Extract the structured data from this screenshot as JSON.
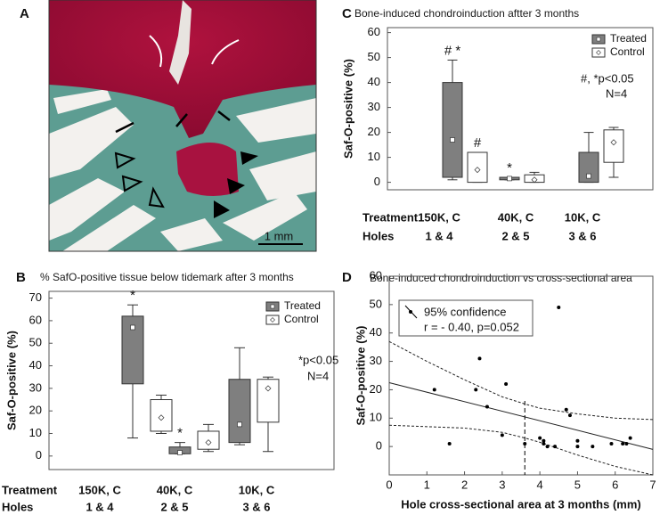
{
  "image_panel": {
    "panel_label": "A",
    "scale_bar": "1 mm"
  },
  "chart_data": [
    {
      "type": "box",
      "panel_label": "B",
      "title": "% SafO-positive tissue below tidemark after 3 months",
      "ylabel": "Saf-O-positive (%)",
      "row_labels": [
        "Treatment",
        "Holes"
      ],
      "categories": [
        "150K, C",
        "40K, C",
        "10K, C"
      ],
      "holes": [
        "1 & 4",
        "2 & 5",
        "3 & 6"
      ],
      "ylim": [
        -6,
        73
      ],
      "yticks": [
        0,
        10,
        20,
        30,
        40,
        50,
        60,
        70
      ],
      "notes": [
        "*p<0.05",
        "N=4"
      ],
      "series": [
        {
          "name": "Treated",
          "color": "#7f7f7f",
          "marker": "square",
          "min": [
            8,
            1,
            5
          ],
          "q1": [
            32,
            1,
            6
          ],
          "q3": [
            62,
            4,
            34
          ],
          "max": [
            67,
            6,
            48
          ],
          "mean": [
            57,
            1.5,
            14
          ],
          "annotations": [
            "*",
            "*",
            null
          ]
        },
        {
          "name": "Control",
          "color": "#ffffff",
          "marker": "diamond",
          "min": [
            10,
            2,
            2
          ],
          "q1": [
            11,
            3,
            15
          ],
          "q3": [
            25,
            11,
            34
          ],
          "max": [
            27,
            14,
            35
          ],
          "mean": [
            17,
            6,
            30
          ],
          "annotations": [
            null,
            null,
            null
          ]
        }
      ]
    },
    {
      "type": "box",
      "panel_label": "C",
      "title": "Bone-induced chondroinduction aftter 3 months",
      "ylabel": "Saf-O-positive (%)",
      "row_labels": [
        "Treatment",
        "Holes"
      ],
      "categories": [
        "150K, C",
        "40K, C",
        "10K, C"
      ],
      "holes": [
        "1 & 4",
        "2 & 5",
        "3 & 6"
      ],
      "ylim": [
        -3,
        62
      ],
      "yticks": [
        0,
        10,
        20,
        30,
        40,
        50,
        60
      ],
      "notes": [
        "#, *p<0.05",
        "N=4"
      ],
      "series": [
        {
          "name": "Treated",
          "color": "#7f7f7f",
          "marker": "square",
          "min": [
            1,
            1,
            0
          ],
          "q1": [
            2,
            1,
            0
          ],
          "q3": [
            40,
            2,
            12
          ],
          "max": [
            49,
            2,
            20
          ],
          "mean": [
            17,
            1.5,
            2.5
          ],
          "annotations": [
            "# *",
            "*",
            null
          ]
        },
        {
          "name": "Control",
          "color": "#ffffff",
          "marker": "diamond",
          "min": [
            0,
            0,
            2
          ],
          "q1": [
            0,
            0,
            8
          ],
          "q3": [
            12,
            3,
            21
          ],
          "max": [
            12,
            4,
            22
          ],
          "mean": [
            5,
            1,
            16
          ],
          "annotations": [
            "#",
            null,
            null
          ]
        }
      ]
    },
    {
      "type": "scatter",
      "panel_label": "D",
      "title": "Bone-induced chondroinduction vs cross-sectional area",
      "xlabel": "Hole cross-sectional area at 3 months (mm)",
      "ylabel": "Saf-O-positive (%)",
      "xlim": [
        0,
        7
      ],
      "xticks": [
        0,
        1,
        2,
        3,
        4,
        5,
        6,
        7
      ],
      "ylim": [
        -10,
        60
      ],
      "yticks": [
        0,
        10,
        20,
        30,
        40,
        50,
        60
      ],
      "x": [
        1.2,
        1.6,
        2.3,
        2.4,
        2.6,
        3.0,
        3.1,
        3.6,
        4.0,
        4.1,
        4.1,
        4.2,
        4.4,
        4.5,
        4.7,
        4.8,
        5.0,
        5.0,
        5.4,
        5.9,
        6.2,
        6.3,
        6.4
      ],
      "y": [
        20,
        1,
        20,
        31,
        14,
        4,
        22,
        1,
        3,
        1,
        2,
        0,
        0,
        49,
        13,
        11,
        2,
        0,
        0,
        1,
        1,
        1,
        3
      ],
      "fit": {
        "x": [
          0,
          7
        ],
        "y": [
          22.5,
          -1
        ]
      },
      "confidence_upper": {
        "x": [
          0,
          1,
          2,
          3,
          3.6,
          4,
          5,
          6,
          7
        ],
        "y": [
          37,
          30,
          23.5,
          17.5,
          15,
          13.5,
          11.5,
          10,
          9.5
        ]
      },
      "confidence_lower": {
        "x": [
          0,
          1,
          2,
          3,
          3.6,
          4,
          5,
          6,
          7
        ],
        "y": [
          7.5,
          7,
          6.5,
          5,
          3,
          1.5,
          -3,
          -7,
          -10
        ]
      },
      "vline_x": 3.6,
      "legend_label": "95% confidence",
      "stat_text": "r = - 0.40, p=0.052"
    }
  ]
}
